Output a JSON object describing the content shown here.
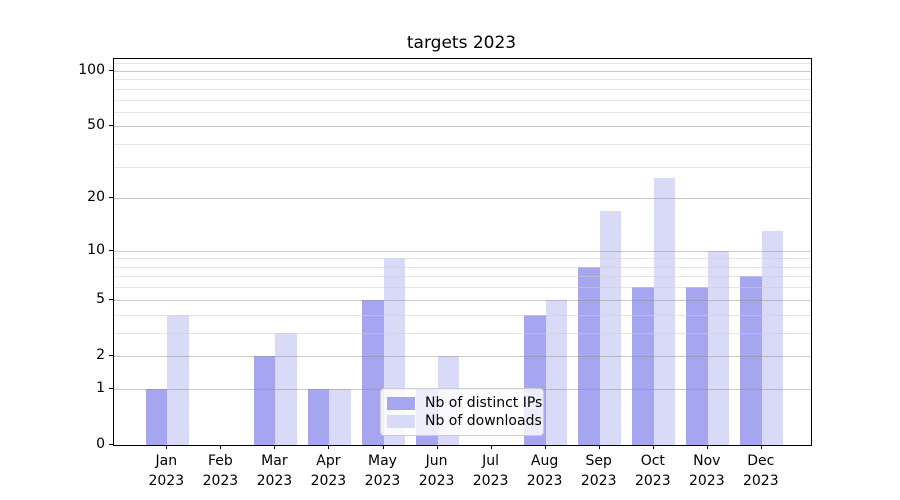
{
  "figure": {
    "background": "#ffffff"
  },
  "chart_data": {
    "type": "bar",
    "title": "targets 2023",
    "categories": [
      "Jan",
      "Feb",
      "Mar",
      "Apr",
      "May",
      "Jun",
      "Jul",
      "Aug",
      "Sep",
      "Oct",
      "Nov",
      "Dec"
    ],
    "category_year": "2023",
    "series": [
      {
        "name": "Nb of distinct IPs",
        "color": "#a5a5f0",
        "values": [
          1,
          0,
          2,
          1,
          5,
          1,
          0,
          4,
          8,
          6,
          6,
          7
        ]
      },
      {
        "name": "Nb of downloads",
        "color": "#d9d9f8",
        "values": [
          4,
          0,
          3,
          1,
          9,
          2,
          0,
          5,
          17,
          26,
          10,
          13
        ]
      }
    ],
    "xlabel": "",
    "ylabel": "",
    "yscale": "log1p",
    "ylim": [
      0,
      116
    ],
    "yticks": [
      0,
      1,
      2,
      5,
      10,
      20,
      50,
      100
    ],
    "yticks_minor": [
      3,
      4,
      6,
      7,
      8,
      9,
      30,
      40,
      60,
      70,
      80,
      90,
      110
    ],
    "grid": true,
    "grid_major_color": "#c9c9c9",
    "grid_minor_color": "#ebebeb",
    "legend_position": "lower-center-inside",
    "legend_labels": [
      "Nb of distinct IPs",
      "Nb of downloads"
    ]
  }
}
